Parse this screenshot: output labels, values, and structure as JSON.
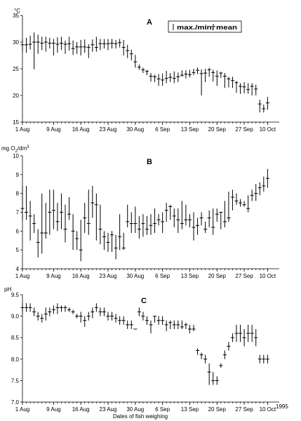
{
  "legend": {
    "text": "max./min. mean"
  },
  "xlabel": "Dates of fish weighing",
  "x_ticks": [
    "1 Aug",
    "9 Aug",
    "16 Aug",
    "23 Aug",
    "30 Aug",
    "6 Sep",
    "13 Sep",
    "20 Sep",
    "27 Sep",
    "10 Oct"
  ],
  "x_tick_days": [
    0,
    8,
    15,
    22,
    29,
    36,
    43,
    50,
    57,
    63
  ],
  "year_label": "1995",
  "chart_data": [
    {
      "type": "errorbar",
      "panel": "A",
      "ylabel": "°C",
      "ylim": [
        15,
        35
      ],
      "yticks": [
        "15",
        "20",
        "25",
        "30",
        "35"
      ],
      "ytick_values": [
        15,
        20,
        25,
        30,
        35
      ],
      "x": [
        0,
        1,
        2,
        3,
        4,
        5,
        6,
        7,
        8,
        9,
        10,
        11,
        12,
        13,
        14,
        15,
        16,
        17,
        18,
        19,
        20,
        21,
        22,
        23,
        24,
        25,
        26,
        27,
        28,
        29,
        30,
        31,
        32,
        33,
        34,
        35,
        36,
        37,
        38,
        39,
        40,
        41,
        42,
        43,
        44,
        45,
        46,
        47,
        48,
        49,
        50,
        51,
        52,
        53,
        54,
        55,
        56,
        57,
        58,
        59,
        60,
        61,
        62,
        63
      ],
      "mean": [
        29.5,
        29.5,
        29.6,
        30.0,
        30.0,
        29.8,
        30.0,
        29.8,
        29.8,
        29.6,
        29.8,
        29.6,
        29.7,
        28.8,
        29.1,
        29.1,
        29.1,
        29.0,
        29.5,
        29.0,
        29.7,
        29.7,
        29.7,
        29.8,
        29.7,
        29.9,
        29.0,
        28.4,
        27.8,
        26.3,
        25.3,
        24.8,
        24.5,
        23.6,
        23.5,
        23.1,
        22.9,
        23.2,
        23.4,
        23.2,
        23.5,
        23.8,
        24.0,
        23.9,
        24.3,
        24.7,
        24.1,
        24.2,
        24.8,
        24.3,
        23.6,
        24.2,
        23.6,
        23.1,
        22.8,
        22.4,
        21.7,
        21.6,
        21.1,
        21.7,
        21.2,
        18.4,
        17.5,
        18.6
      ],
      "max": [
        30.5,
        30.8,
        31.2,
        31.8,
        31.4,
        31.0,
        31.0,
        30.8,
        30.6,
        30.9,
        31.0,
        30.3,
        31.0,
        30.3,
        30.0,
        30.4,
        30.5,
        29.6,
        30.5,
        31.0,
        30.6,
        30.6,
        30.6,
        30.6,
        30.4,
        30.6,
        30.4,
        29.5,
        28.6,
        27.6,
        25.8,
        25.2,
        24.8,
        24.2,
        23.9,
        24.0,
        24.1,
        24.6,
        24.2,
        24.5,
        24.3,
        24.7,
        24.7,
        24.8,
        25.0,
        25.2,
        24.9,
        25.0,
        25.2,
        24.8,
        24.7,
        24.4,
        24.2,
        23.5,
        23.5,
        22.7,
        22.3,
        22.5,
        22.3,
        22.3,
        22.0,
        19.2,
        18.3,
        19.7
      ],
      "min": [
        28.2,
        28.0,
        28.6,
        24.9,
        27.8,
        28.5,
        28.2,
        28.8,
        27.5,
        28.0,
        28.5,
        27.8,
        28.4,
        27.6,
        27.8,
        27.5,
        28.0,
        27.0,
        28.2,
        28.2,
        28.5,
        28.8,
        28.5,
        28.8,
        28.8,
        29.0,
        27.5,
        27.0,
        26.6,
        25.2,
        24.8,
        24.2,
        23.8,
        22.6,
        22.5,
        21.8,
        21.8,
        22.3,
        22.5,
        22.3,
        22.5,
        23.5,
        23.2,
        23.4,
        23.8,
        24.0,
        20.0,
        22.5,
        23.5,
        22.6,
        21.8,
        23.3,
        21.4,
        21.5,
        21.4,
        20.5,
        20.3,
        20.4,
        20.3,
        20.0,
        20.0,
        16.8,
        16.8,
        17.3
      ]
    },
    {
      "type": "errorbar",
      "panel": "B",
      "ylabel": "mg O2/dm3",
      "ylim": [
        4,
        10
      ],
      "yticks": [
        "4",
        "5",
        "6",
        "7",
        "8",
        "9",
        "10"
      ],
      "ytick_values": [
        4,
        5,
        6,
        7,
        8,
        9,
        10
      ],
      "x": [
        0,
        1,
        2,
        3,
        4,
        5,
        6,
        7,
        8,
        9,
        10,
        11,
        12,
        13,
        14,
        15,
        16,
        17,
        18,
        19,
        20,
        21,
        22,
        23,
        24,
        25,
        26,
        27,
        28,
        29,
        30,
        31,
        32,
        33,
        34,
        35,
        36,
        37,
        38,
        39,
        40,
        41,
        42,
        43,
        44,
        45,
        46,
        47,
        48,
        49,
        50,
        51,
        52,
        53,
        54,
        55,
        56,
        57,
        58,
        59,
        60,
        61,
        62,
        63
      ],
      "mean": [
        7.2,
        7.0,
        6.8,
        6.4,
        5.4,
        5.9,
        5.9,
        7.0,
        7.1,
        6.5,
        7.0,
        6.1,
        6.9,
        6.0,
        5.6,
        5.0,
        6.7,
        6.4,
        7.5,
        7.4,
        6.1,
        5.7,
        5.4,
        5.8,
        5.1,
        5.7,
        5.1,
        6.5,
        6.4,
        6.4,
        6.1,
        6.4,
        6.1,
        6.3,
        6.4,
        6.6,
        6.5,
        7.1,
        7.3,
        6.8,
        6.6,
        6.4,
        6.6,
        6.6,
        6.2,
        6.3,
        6.7,
        6.1,
        6.7,
        6.2,
        6.9,
        7.0,
        6.5,
        6.7,
        7.8,
        7.6,
        7.5,
        7.4,
        7.2,
        7.9,
        8.0,
        8.3,
        8.4,
        8.8
      ],
      "max": [
        8.4,
        8.4,
        7.6,
        6.9,
        6.1,
        8.0,
        7.5,
        8.2,
        8.2,
        7.5,
        8.0,
        7.4,
        7.8,
        6.9,
        6.0,
        6.6,
        7.5,
        8.2,
        8.4,
        8.0,
        7.4,
        6.0,
        5.9,
        6.0,
        5.8,
        6.9,
        5.9,
        7.4,
        7.0,
        7.3,
        6.8,
        6.9,
        6.8,
        6.9,
        7.2,
        6.9,
        7.0,
        7.5,
        7.4,
        7.2,
        7.2,
        7.6,
        7.4,
        6.9,
        7.0,
        6.7,
        7.0,
        6.5,
        7.1,
        7.2,
        7.2,
        7.0,
        7.6,
        8.1,
        8.2,
        8.0,
        7.7,
        7.6,
        7.9,
        8.2,
        8.5,
        8.6,
        8.9,
        9.3
      ],
      "min": [
        6.6,
        6.6,
        5.5,
        5.9,
        4.6,
        4.8,
        5.6,
        5.8,
        6.1,
        6.0,
        6.1,
        5.4,
        6.6,
        5.0,
        5.0,
        4.4,
        5.9,
        5.8,
        6.7,
        5.5,
        5.3,
        5.0,
        4.9,
        4.9,
        4.5,
        5.0,
        5.0,
        6.2,
        5.9,
        5.9,
        5.6,
        5.7,
        5.8,
        5.8,
        5.9,
        6.3,
        5.9,
        6.5,
        6.6,
        6.2,
        5.9,
        6.1,
        6.3,
        6.2,
        5.5,
        5.8,
        6.3,
        5.9,
        6.2,
        5.8,
        6.5,
        6.1,
        6.2,
        6.5,
        7.1,
        7.4,
        7.3,
        7.3,
        7.0,
        7.6,
        7.6,
        7.9,
        8.1,
        8.3
      ]
    },
    {
      "type": "errorbar",
      "panel": "C",
      "ylabel": "pH",
      "ylim": [
        7.0,
        9.5
      ],
      "yticks": [
        "7.0",
        "7.5",
        "8.0",
        "8.5",
        "9.0",
        "9.5"
      ],
      "ytick_values": [
        7.0,
        7.5,
        8.0,
        8.5,
        9.0,
        9.5
      ],
      "x": [
        0,
        1,
        2,
        3,
        4,
        5,
        6,
        7,
        8,
        9,
        10,
        11,
        12,
        13,
        14,
        15,
        16,
        17,
        18,
        19,
        20,
        21,
        22,
        23,
        24,
        25,
        26,
        27,
        28,
        29,
        30,
        31,
        32,
        33,
        34,
        35,
        36,
        37,
        38,
        39,
        40,
        41,
        42,
        43,
        44,
        45,
        46,
        47,
        48,
        49,
        50,
        51,
        52,
        53,
        54,
        55,
        56,
        57,
        58,
        59,
        60,
        61,
        62,
        63
      ],
      "mean": [
        9.2,
        9.2,
        9.2,
        9.1,
        9.0,
        8.95,
        9.05,
        9.1,
        9.15,
        9.2,
        9.2,
        9.2,
        9.15,
        9.1,
        9.0,
        9.0,
        8.9,
        9.0,
        9.1,
        9.2,
        9.1,
        9.1,
        9.0,
        9.0,
        8.95,
        8.9,
        8.9,
        8.8,
        8.8,
        8.7,
        9.1,
        9.0,
        8.9,
        8.8,
        9.0,
        8.9,
        8.9,
        8.8,
        8.85,
        8.8,
        8.8,
        8.75,
        8.8,
        8.7,
        8.7,
        8.2,
        8.1,
        8.0,
        7.7,
        7.5,
        7.5,
        7.85,
        8.1,
        8.3,
        8.5,
        8.6,
        8.6,
        8.5,
        8.6,
        8.6,
        8.5,
        8.0,
        8.0,
        8.0
      ],
      "max": [
        9.3,
        9.3,
        9.3,
        9.2,
        9.1,
        9.05,
        9.2,
        9.2,
        9.25,
        9.3,
        9.25,
        9.25,
        9.2,
        9.15,
        9.05,
        9.1,
        9.0,
        9.1,
        9.2,
        9.3,
        9.2,
        9.2,
        9.1,
        9.1,
        9.05,
        9.0,
        9.0,
        8.9,
        8.9,
        8.7,
        9.2,
        9.1,
        9.0,
        8.9,
        9.0,
        9.0,
        9.0,
        8.9,
        8.9,
        8.9,
        8.9,
        8.9,
        8.85,
        8.8,
        8.8,
        8.25,
        8.15,
        8.1,
        7.9,
        7.7,
        7.6,
        7.9,
        8.2,
        8.4,
        8.6,
        8.8,
        8.8,
        8.7,
        8.8,
        8.8,
        8.7,
        8.1,
        8.1,
        8.1
      ],
      "min": [
        9.05,
        9.1,
        9.1,
        9.0,
        8.9,
        8.85,
        8.9,
        9.0,
        9.05,
        9.05,
        9.1,
        9.1,
        9.1,
        9.05,
        8.95,
        8.85,
        8.75,
        8.9,
        8.95,
        9.1,
        9.0,
        9.0,
        8.9,
        8.9,
        8.85,
        8.8,
        8.8,
        8.7,
        8.7,
        8.7,
        9.0,
        8.9,
        8.8,
        8.6,
        8.85,
        8.8,
        8.8,
        8.65,
        8.7,
        8.7,
        8.7,
        8.7,
        8.7,
        8.6,
        8.65,
        8.1,
        8.0,
        7.9,
        7.4,
        7.4,
        7.4,
        7.8,
        8.0,
        8.2,
        8.4,
        8.4,
        8.4,
        8.3,
        8.4,
        8.4,
        8.3,
        7.9,
        7.9,
        7.9
      ]
    }
  ]
}
